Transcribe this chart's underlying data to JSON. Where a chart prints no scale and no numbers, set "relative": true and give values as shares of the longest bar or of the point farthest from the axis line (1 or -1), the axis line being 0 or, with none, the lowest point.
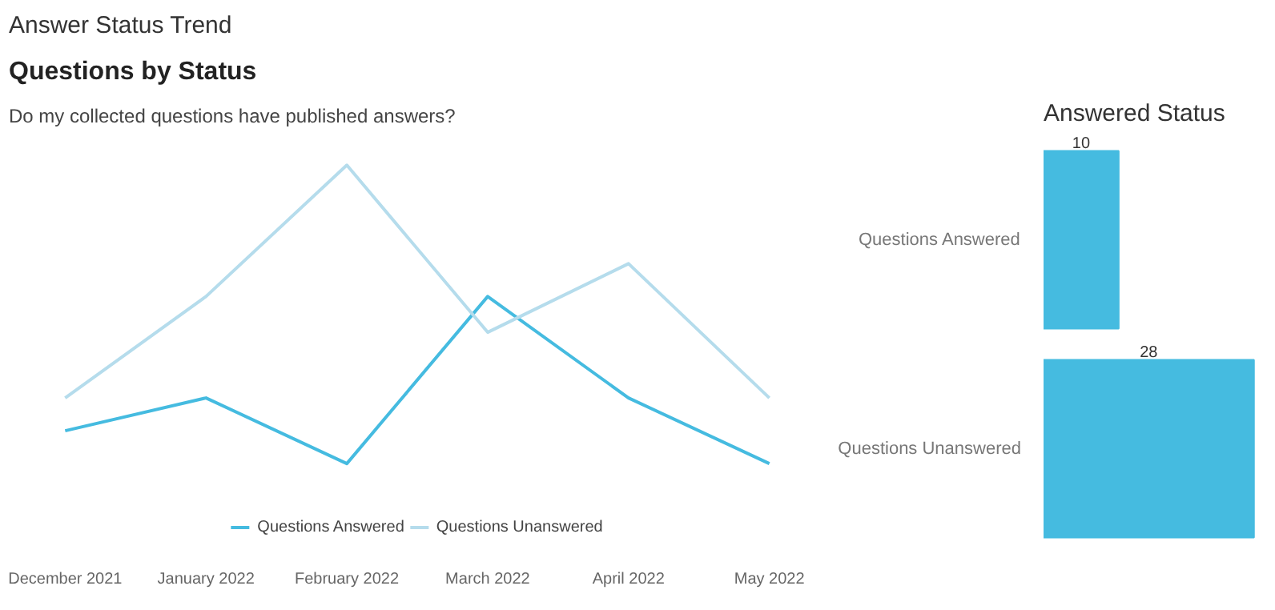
{
  "chart_data": [
    {
      "type": "other",
      "title": "Questions by Status",
      "subtitle": "Do my collected questions have published answers?"
    },
    {
      "type": "line",
      "title": "Answer Status Trend",
      "relative": true,
      "categories": [
        "December 2021",
        "January 2022",
        "February 2022",
        "March 2022",
        "April 2022",
        "May 2022"
      ],
      "series": [
        {
          "name": "Questions Answered",
          "color": "#45bbe0",
          "values": [
            0.11,
            0.22,
            0,
            0.56,
            0.22,
            0
          ]
        },
        {
          "name": "Questions Unanswered",
          "color": "#b5dcec",
          "values": [
            0.22,
            0.56,
            1,
            0.44,
            0.67,
            0.22
          ]
        }
      ],
      "legend": "bottom",
      "marker": "none",
      "line_style": "solid"
    },
    {
      "type": "bar",
      "title": "Answered Status",
      "orientation": "horizontal",
      "categories": [
        "Questions Answered",
        "Questions Unanswered"
      ],
      "values": [
        10,
        28
      ],
      "color": "#45bbe0",
      "data_labels": true
    }
  ]
}
